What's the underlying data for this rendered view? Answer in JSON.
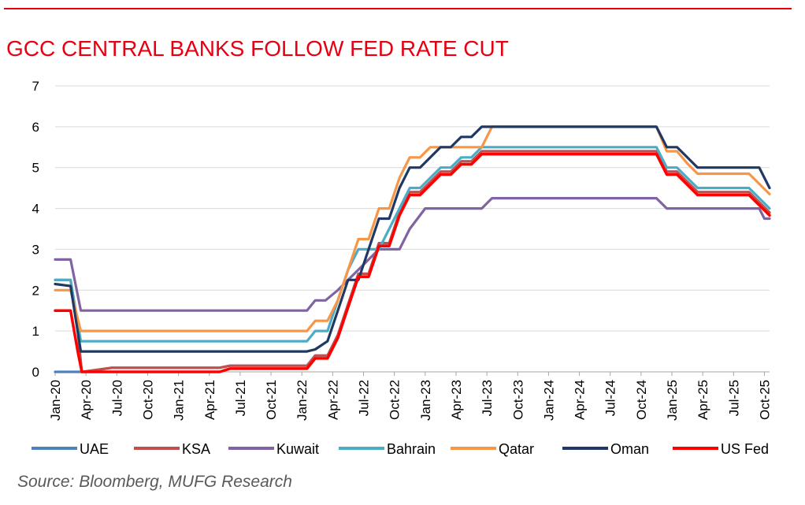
{
  "title": "GCC CENTRAL BANKS FOLLOW FED RATE CUT",
  "source": "Source: Bloomberg, MUFG Research",
  "chart_data": {
    "type": "line",
    "title": "GCC CENTRAL BANKS FOLLOW FED RATE CUT",
    "xlabel": "",
    "ylabel": "",
    "ylim": [
      0,
      7
    ],
    "yticks": [
      0,
      1,
      2,
      3,
      4,
      5,
      6,
      7
    ],
    "grid": "horizontal",
    "legend": "bottom",
    "x_ticks": [
      "Jan-20",
      "Apr-20",
      "Jul-20",
      "Oct-20",
      "Jan-21",
      "Apr-21",
      "Jul-21",
      "Oct-21",
      "Jan-22",
      "Apr-22",
      "Jul-22",
      "Oct-22",
      "Jan-23",
      "Apr-23",
      "Jul-23",
      "Oct-23",
      "Jan-24",
      "Apr-24",
      "Jul-24",
      "Oct-24",
      "Jan-25",
      "Apr-25",
      "Jul-25",
      "Oct-25"
    ],
    "x_min": 0,
    "x_max": 69.5,
    "series": [
      {
        "name": "UAE",
        "color": "#4f81bd",
        "points": [
          [
            0,
            0
          ],
          [
            2,
            0
          ],
          [
            2.5,
            0
          ],
          [
            3,
            0
          ],
          [
            5.5,
            0.1
          ],
          [
            16,
            0.1
          ],
          [
            17,
            0.15
          ],
          [
            24.5,
            0.15
          ],
          [
            25.3,
            0.4
          ],
          [
            26.5,
            0.4
          ],
          [
            27.5,
            0.9
          ],
          [
            28.5,
            1.65
          ],
          [
            29.5,
            2.4
          ],
          [
            30.5,
            2.4
          ],
          [
            31.5,
            3.15
          ],
          [
            32.5,
            3.15
          ],
          [
            33.5,
            3.9
          ],
          [
            34.5,
            4.4
          ],
          [
            35.5,
            4.4
          ],
          [
            36.5,
            4.65
          ],
          [
            37.5,
            4.9
          ],
          [
            38.5,
            4.9
          ],
          [
            39.5,
            5.15
          ],
          [
            40.5,
            5.15
          ],
          [
            41.5,
            5.4
          ],
          [
            58.5,
            5.4
          ],
          [
            59.5,
            4.9
          ],
          [
            60.5,
            4.9
          ],
          [
            61.5,
            4.65
          ],
          [
            62.5,
            4.4
          ],
          [
            67.5,
            4.4
          ],
          [
            69.5,
            3.9
          ]
        ]
      },
      {
        "name": "KSA",
        "color": "#c0504d",
        "points": [
          [
            0,
            2.25
          ],
          [
            1.5,
            2.25
          ],
          [
            2.2,
            1.0
          ],
          [
            2.6,
            0
          ],
          [
            5.5,
            0.1
          ],
          [
            16,
            0.1
          ],
          [
            17,
            0.15
          ],
          [
            24.5,
            0.15
          ],
          [
            25.3,
            0.4
          ],
          [
            26.5,
            0.4
          ],
          [
            27.5,
            0.9
          ],
          [
            28.5,
            1.65
          ],
          [
            29.5,
            2.4
          ],
          [
            30.5,
            2.4
          ],
          [
            31.5,
            3.15
          ],
          [
            32.5,
            3.15
          ],
          [
            33.5,
            3.9
          ],
          [
            34.5,
            4.4
          ],
          [
            35.5,
            4.4
          ],
          [
            36.5,
            4.65
          ],
          [
            37.5,
            4.9
          ],
          [
            38.5,
            4.9
          ],
          [
            39.5,
            5.15
          ],
          [
            40.5,
            5.15
          ],
          [
            41.5,
            5.4
          ],
          [
            58.5,
            5.4
          ],
          [
            59.5,
            4.9
          ],
          [
            60.5,
            4.9
          ],
          [
            61.5,
            4.65
          ],
          [
            62.5,
            4.4
          ],
          [
            67.5,
            4.4
          ],
          [
            69.5,
            3.9
          ]
        ]
      },
      {
        "name": "Kuwait",
        "color": "#8064a2",
        "points": [
          [
            0,
            2.75
          ],
          [
            1.5,
            2.75
          ],
          [
            2.5,
            1.5
          ],
          [
            24.5,
            1.5
          ],
          [
            25.3,
            1.75
          ],
          [
            26.3,
            1.75
          ],
          [
            27.5,
            2.0
          ],
          [
            28.5,
            2.25
          ],
          [
            29.5,
            2.5
          ],
          [
            30.5,
            2.75
          ],
          [
            31.5,
            3.0
          ],
          [
            33.5,
            3.0
          ],
          [
            34.5,
            3.5
          ],
          [
            36,
            4.0
          ],
          [
            41.5,
            4.0
          ],
          [
            42.5,
            4.25
          ],
          [
            58.5,
            4.25
          ],
          [
            59.5,
            4.0
          ],
          [
            68.5,
            4.0
          ],
          [
            69,
            3.75
          ],
          [
            69.5,
            3.75
          ]
        ]
      },
      {
        "name": "Bahrain",
        "color": "#4bacc6",
        "points": [
          [
            0,
            2.25
          ],
          [
            1.5,
            2.25
          ],
          [
            2.5,
            0.75
          ],
          [
            24.5,
            0.75
          ],
          [
            25.3,
            1.0
          ],
          [
            26.5,
            1.0
          ],
          [
            27.5,
            1.75
          ],
          [
            28.5,
            2.5
          ],
          [
            29.5,
            3.0
          ],
          [
            30.5,
            3.0
          ],
          [
            31.5,
            3.0
          ],
          [
            32.5,
            3.5
          ],
          [
            33.5,
            4.0
          ],
          [
            34.5,
            4.5
          ],
          [
            35.5,
            4.5
          ],
          [
            36.5,
            4.75
          ],
          [
            37.5,
            5.0
          ],
          [
            38.5,
            5.0
          ],
          [
            39.5,
            5.25
          ],
          [
            40.5,
            5.25
          ],
          [
            41.5,
            5.5
          ],
          [
            58.5,
            5.5
          ],
          [
            59.5,
            5.0
          ],
          [
            60.5,
            5.0
          ],
          [
            61.5,
            4.75
          ],
          [
            62.5,
            4.5
          ],
          [
            67.5,
            4.5
          ],
          [
            69.5,
            4.0
          ]
        ]
      },
      {
        "name": "Qatar",
        "color": "#f79646",
        "points": [
          [
            0,
            2.0
          ],
          [
            1.5,
            2.0
          ],
          [
            2.5,
            1.0
          ],
          [
            24.5,
            1.0
          ],
          [
            25.3,
            1.25
          ],
          [
            26.5,
            1.25
          ],
          [
            27.5,
            1.75
          ],
          [
            28.5,
            2.5
          ],
          [
            29.5,
            3.25
          ],
          [
            30.5,
            3.25
          ],
          [
            31.5,
            4.0
          ],
          [
            32.5,
            4.0
          ],
          [
            33.5,
            4.75
          ],
          [
            34.5,
            5.25
          ],
          [
            35.5,
            5.25
          ],
          [
            36.5,
            5.5
          ],
          [
            41.5,
            5.5
          ],
          [
            42.5,
            6.0
          ],
          [
            58.5,
            6.0
          ],
          [
            59.5,
            5.4
          ],
          [
            60.5,
            5.4
          ],
          [
            61.5,
            5.1
          ],
          [
            62.5,
            4.85
          ],
          [
            67.5,
            4.85
          ],
          [
            69.5,
            4.35
          ]
        ]
      },
      {
        "name": "Oman",
        "color": "#1f3864",
        "points": [
          [
            0,
            2.15
          ],
          [
            1.5,
            2.1
          ],
          [
            2.5,
            0.5
          ],
          [
            24.5,
            0.5
          ],
          [
            25.3,
            0.55
          ],
          [
            26.5,
            0.75
          ],
          [
            27.5,
            1.5
          ],
          [
            28.5,
            2.25
          ],
          [
            29.5,
            2.25
          ],
          [
            30.5,
            3.0
          ],
          [
            31.5,
            3.75
          ],
          [
            32.5,
            3.75
          ],
          [
            33.5,
            4.5
          ],
          [
            34.5,
            5.0
          ],
          [
            35.5,
            5.0
          ],
          [
            36.5,
            5.25
          ],
          [
            37.5,
            5.5
          ],
          [
            38.5,
            5.5
          ],
          [
            39.5,
            5.75
          ],
          [
            40.5,
            5.75
          ],
          [
            41.5,
            6.0
          ],
          [
            58.5,
            6.0
          ],
          [
            59.5,
            5.5
          ],
          [
            60.5,
            5.5
          ],
          [
            61.5,
            5.25
          ],
          [
            62.5,
            5.0
          ],
          [
            68.5,
            5.0
          ],
          [
            69.5,
            4.5
          ]
        ]
      },
      {
        "name": "US Fed",
        "color": "#ff0000",
        "points": [
          [
            0,
            1.5
          ],
          [
            1.5,
            1.5
          ],
          [
            2.2,
            0.5
          ],
          [
            2.6,
            0
          ],
          [
            5.5,
            0
          ],
          [
            16,
            0
          ],
          [
            17,
            0.08
          ],
          [
            24.5,
            0.08
          ],
          [
            25.3,
            0.33
          ],
          [
            26.5,
            0.33
          ],
          [
            27.5,
            0.83
          ],
          [
            28.5,
            1.58
          ],
          [
            29.5,
            2.33
          ],
          [
            30.5,
            2.33
          ],
          [
            31.5,
            3.08
          ],
          [
            32.5,
            3.08
          ],
          [
            33.5,
            3.83
          ],
          [
            34.5,
            4.33
          ],
          [
            35.5,
            4.33
          ],
          [
            36.5,
            4.58
          ],
          [
            37.5,
            4.83
          ],
          [
            38.5,
            4.83
          ],
          [
            39.5,
            5.08
          ],
          [
            40.5,
            5.08
          ],
          [
            41.5,
            5.33
          ],
          [
            58.5,
            5.33
          ],
          [
            59.5,
            4.83
          ],
          [
            60.5,
            4.83
          ],
          [
            61.5,
            4.58
          ],
          [
            62.5,
            4.33
          ],
          [
            67.5,
            4.33
          ],
          [
            69.5,
            3.83
          ]
        ]
      }
    ]
  }
}
